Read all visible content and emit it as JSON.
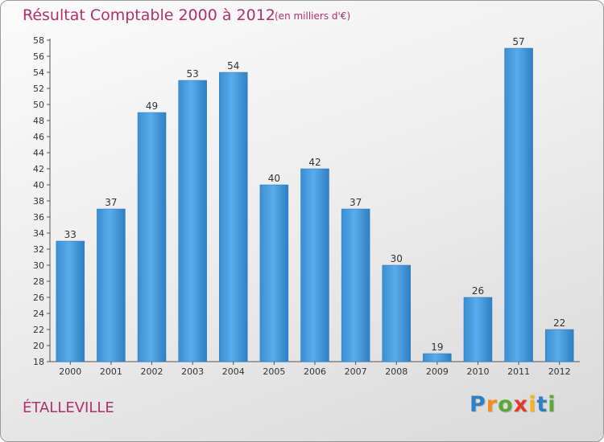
{
  "chart_data": {
    "type": "bar",
    "title": "Résultat Comptable 2000 à 2012",
    "subtitle": "(en milliers d'€)",
    "categories": [
      "2000",
      "2001",
      "2002",
      "2003",
      "2004",
      "2005",
      "2006",
      "2007",
      "2008",
      "2009",
      "2010",
      "2011",
      "2012"
    ],
    "values": [
      33,
      37,
      49,
      53,
      54,
      40,
      42,
      37,
      30,
      19,
      26,
      57,
      22
    ],
    "xlabel": "",
    "ylabel": "",
    "ylim": [
      18,
      58
    ],
    "ytick_step": 2,
    "grid": false,
    "bar_color": "#3d93d6"
  },
  "location": "ÉTALLEVILLE",
  "logo": {
    "letters": [
      "P",
      "r",
      "o",
      "x",
      "i",
      "t",
      "i"
    ],
    "colors": [
      "#2f7fc1",
      "#f28c1e",
      "#5aa83a",
      "#e23a2e",
      "#f2b51c",
      "#2f7fc1",
      "#5aa83a"
    ]
  },
  "colors": {
    "accent": "#b0306a",
    "axis": "#555555"
  }
}
